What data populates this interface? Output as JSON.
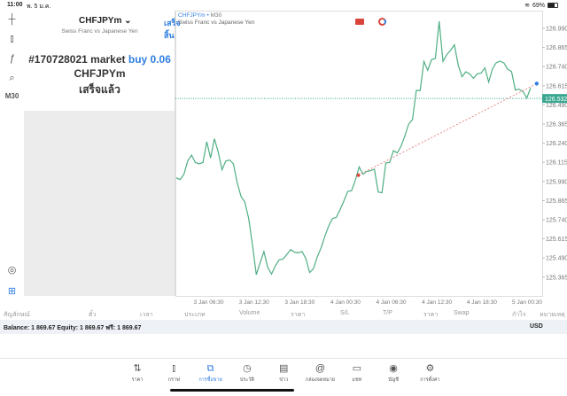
{
  "status": {
    "time": "11:00",
    "date": "พ. 5 ม.ค.",
    "battery": "69%",
    "battery_level": 0.69
  },
  "toolbar": {
    "items": [
      {
        "icon": "crosshair-icon",
        "glyph": "┼"
      },
      {
        "icon": "candles-icon",
        "glyph": "⫾"
      },
      {
        "icon": "function-icon",
        "glyph": "ƒ"
      },
      {
        "icon": "objects-icon",
        "glyph": "⌕"
      },
      {
        "label": "M30"
      }
    ],
    "bottom": [
      {
        "icon": "chart-search-icon",
        "glyph": "◎"
      },
      {
        "icon": "new-order-icon",
        "glyph": "⊞"
      }
    ]
  },
  "panel": {
    "symbol": "CHFJPYm",
    "description": "Swiss Franc vs Japanese Yen",
    "done_label": "เสร็จสิ้น",
    "order_text": "#170728021 market ",
    "order_action": "buy 0.06",
    "order_symbol": "CHFJPYm",
    "order_status": "เสร็จแล้ว"
  },
  "chart": {
    "symbol": "CHFJPYm",
    "timeframe": "M30",
    "description": "Swiss Franc vs Japanese Yen",
    "line_color": "#4fae83",
    "current_price": "126.532",
    "colors": {
      "entry": "#d9453a",
      "current": "#2f7ee0",
      "price_tag": "#3aa891"
    }
  },
  "chart_data": {
    "type": "line",
    "ylim": [
      125.29,
      127.06
    ],
    "y_ticks": [
      "126.990",
      "126.865",
      "126.740",
      "126.615",
      "126.490",
      "126.365",
      "126.240",
      "126.115",
      "125.990",
      "125.865",
      "125.740",
      "125.615",
      "125.490",
      "125.365"
    ],
    "x_ticks": [
      "3 Jan 06:30",
      "3 Jan 12:30",
      "3 Jan 18:30",
      "4 Jan 00:30",
      "4 Jan 06:30",
      "4 Jan 12:30",
      "4 Jan 18:30",
      "5 Jan 00:30"
    ],
    "x_tick_index": [
      8.5,
      20.4,
      32.4,
      44.4,
      56.4,
      68.4,
      80.2,
      92.1
    ],
    "values": [
      126.014,
      126.002,
      126.037,
      126.124,
      126.162,
      126.114,
      126.105,
      126.114,
      126.249,
      126.143,
      126.269,
      126.182,
      126.066,
      126.124,
      126.13,
      126.105,
      125.979,
      125.892,
      125.854,
      125.748,
      125.574,
      125.381,
      125.458,
      125.532,
      125.429,
      125.385,
      125.439,
      125.478,
      125.483,
      125.512,
      125.545,
      125.528,
      125.524,
      125.532,
      125.487,
      125.395,
      125.42,
      125.497,
      125.555,
      125.632,
      125.699,
      125.748,
      125.755,
      125.806,
      125.863,
      125.925,
      125.929,
      125.998,
      126.085,
      126.037,
      126.056,
      126.06,
      126.07,
      125.921,
      125.916,
      126.11,
      126.114,
      126.191,
      126.176,
      126.22,
      126.288,
      126.365,
      126.394,
      126.585,
      126.583,
      126.774,
      126.716,
      126.786,
      126.793,
      127.036,
      126.774,
      126.818,
      126.847,
      126.882,
      126.751,
      126.674,
      126.706,
      126.693,
      126.664,
      126.693,
      126.697,
      126.732,
      126.639,
      126.726,
      126.766,
      126.776,
      126.764,
      126.722,
      126.708,
      126.587,
      126.593,
      126.577,
      126.535,
      126.6
    ],
    "entry": {
      "index": 47.8,
      "price": 126.031
    },
    "current": {
      "index": 94.6,
      "price": 126.629
    },
    "bid_line": 126.532
  },
  "table": {
    "headers": [
      "สัญลักษณ์",
      "ตั๋ว",
      "เวลา",
      "ประเภท",
      "Volume",
      "ราคา",
      "S/L",
      "T/P",
      "ราคา",
      "Swap",
      "กำไร",
      "หมายเหตุ"
    ],
    "balance": "Balance: 1 869.67 Equity: 1 869.67 ฟรี: 1 869.67",
    "currency": "USD"
  },
  "nav": {
    "items": [
      {
        "label": "ราคา",
        "glyph": "⇅",
        "icon": "quotes-icon"
      },
      {
        "label": "กราฟ",
        "glyph": "⫾",
        "icon": "chart-icon"
      },
      {
        "label": "การซื้อขาย",
        "glyph": "⧉",
        "icon": "trade-icon"
      },
      {
        "label": "ประวัติ",
        "glyph": "◷",
        "icon": "history-icon"
      },
      {
        "label": "ข่าว",
        "glyph": "▤",
        "icon": "news-icon"
      },
      {
        "label": "กล่องจดหมาย",
        "glyph": "@",
        "icon": "mailbox-icon"
      },
      {
        "label": "แชท",
        "glyph": "▭",
        "icon": "chat-icon"
      },
      {
        "label": "บัญชี",
        "glyph": "◉",
        "icon": "account-icon"
      },
      {
        "label": "การตั้งค่า",
        "glyph": "⚙",
        "icon": "settings-icon"
      }
    ],
    "active": 2
  }
}
